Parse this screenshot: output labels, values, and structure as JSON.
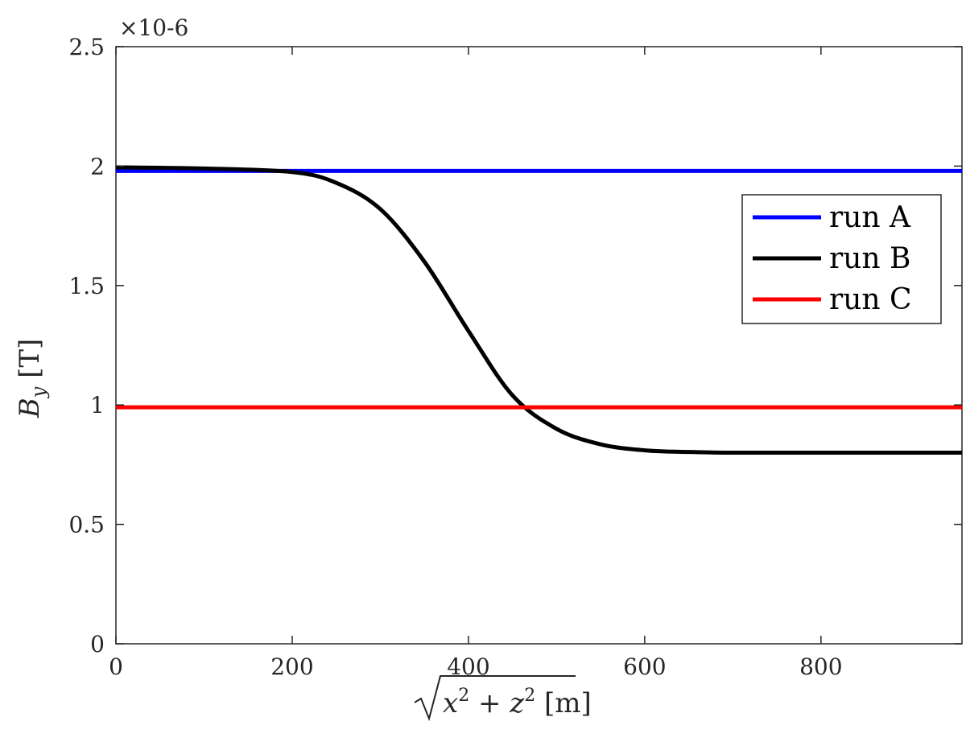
{
  "chart_data": {
    "type": "line",
    "xlabel": "√(x²+z²)  [m]",
    "ylabel": "B_y  [T]",
    "xlim": [
      0,
      960
    ],
    "ylim": [
      0,
      2.5e-06
    ],
    "x_ticks": [
      0,
      200,
      400,
      600,
      800
    ],
    "y_ticks": [
      0,
      0.5,
      1,
      1.5,
      2,
      2.5
    ],
    "y_tick_labels": [
      "0",
      "0.5",
      "1",
      "1.5",
      "2",
      "2.5"
    ],
    "y_exponent_label": "×10-6",
    "legend_placement": "right",
    "grid": false,
    "series": [
      {
        "name": "run A",
        "color": "#0000ff",
        "x": [
          0,
          960
        ],
        "y": [
          1.98e-06,
          1.98e-06
        ]
      },
      {
        "name": "run B",
        "color": "#000000",
        "x": [
          0,
          100,
          200,
          250,
          300,
          350,
          400,
          450,
          500,
          550,
          600,
          650,
          700,
          800,
          960
        ],
        "y": [
          1.995e-06,
          1.99e-06,
          1.975e-06,
          1.93e-06,
          1.82e-06,
          1.6e-06,
          1.31e-06,
          1.04e-06,
          9e-07,
          8.35e-07,
          8.1e-07,
          8.03e-07,
          8e-07,
          8e-07,
          8e-07
        ]
      },
      {
        "name": "run C",
        "color": "#ff0000",
        "x": [
          0,
          960
        ],
        "y": [
          9.9e-07,
          9.9e-07
        ]
      }
    ]
  }
}
